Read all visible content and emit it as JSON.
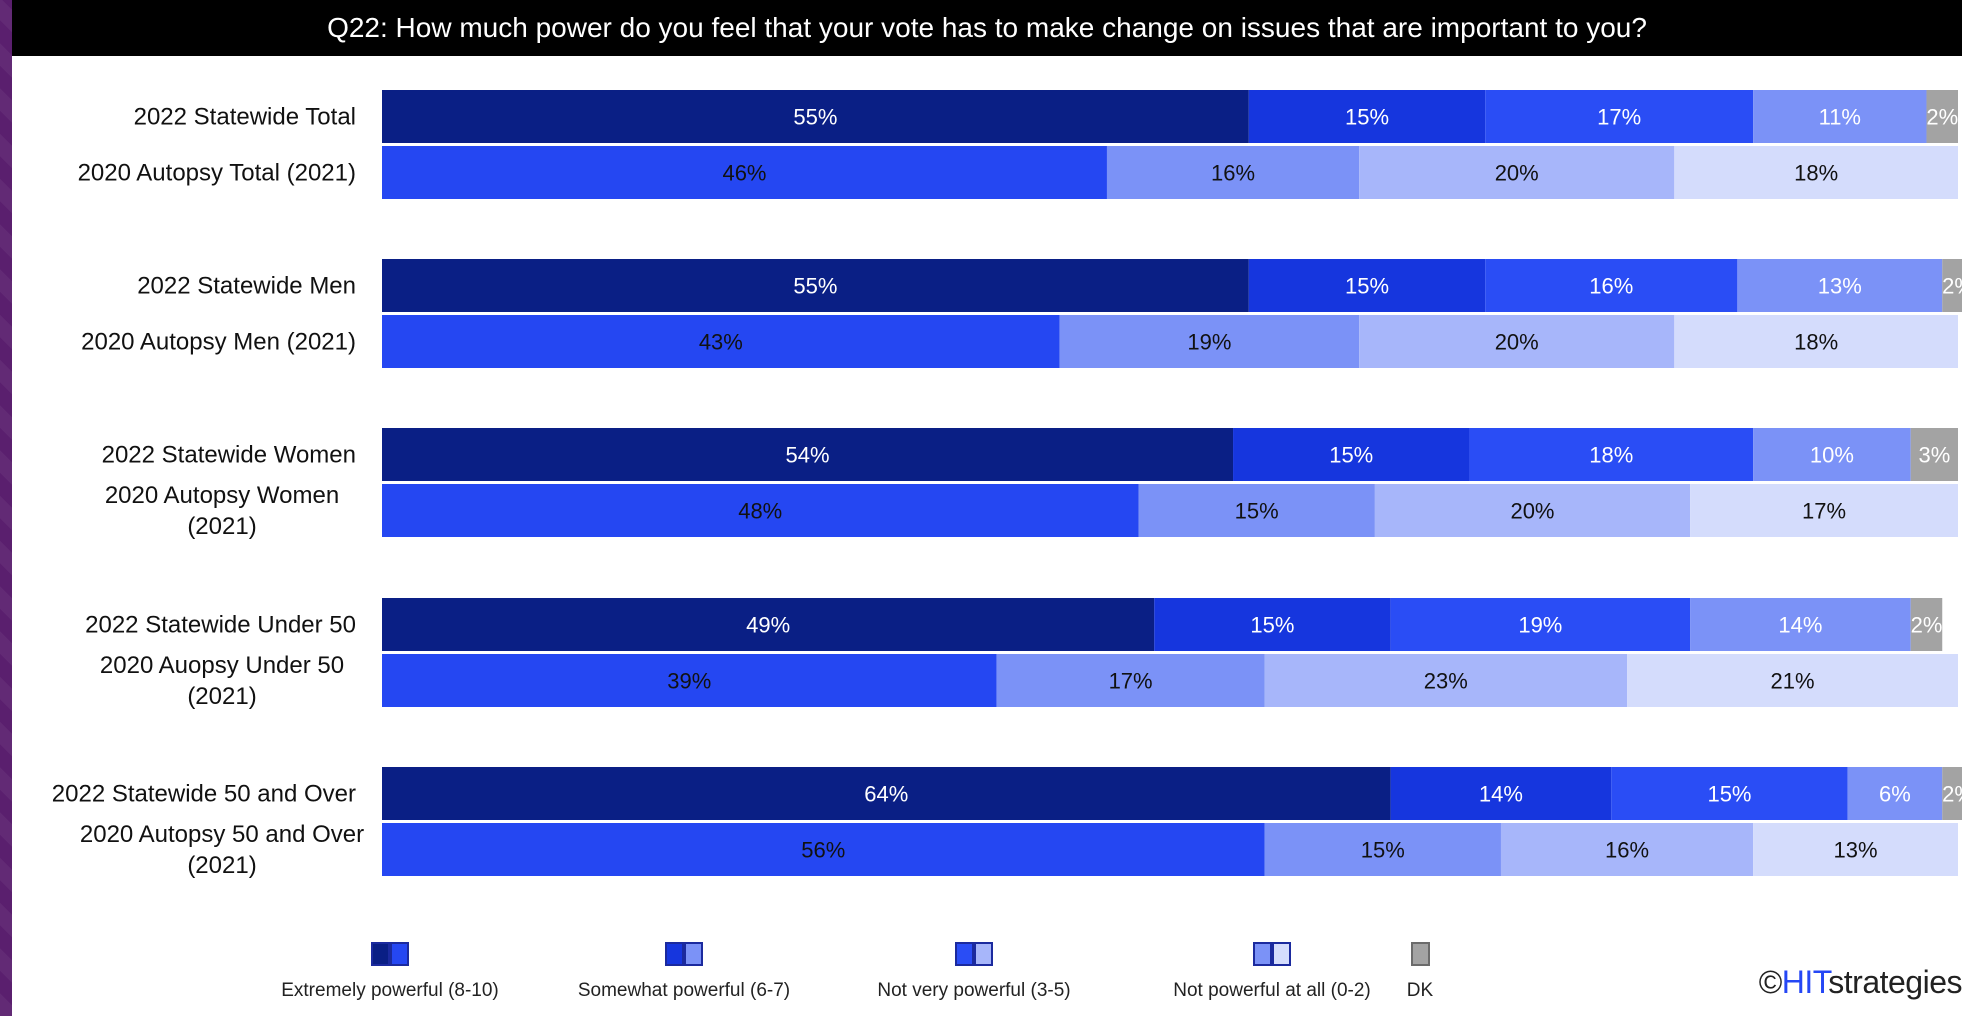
{
  "chart_data": {
    "type": "bar",
    "orientation": "horizontal",
    "stacked": true,
    "title": "Q22: How much power do you feel that your vote has to make change on issues that are important to you?",
    "categories": [
      "2022 Statewide Total",
      "2020 Autopsy Total (2021)",
      "2022 Statewide Men",
      "2020 Autopsy Men (2021)",
      "2022 Statewide Women",
      "2020 Autopsy Women (2021)",
      "2022 Statewide Under 50",
      "2020 Auopsy Under 50 (2021)",
      "2022 Statewide 50 and Over",
      "2020 Autopsy 50 and Over (2021)"
    ],
    "category_lines": [
      [
        "2022 Statewide Total"
      ],
      [
        "2020 Autopsy Total (2021)"
      ],
      [
        "2022 Statewide Men"
      ],
      [
        "2020 Autopsy Men (2021)"
      ],
      [
        "2022 Statewide Women"
      ],
      [
        "2020 Autopsy Women",
        "(2021)"
      ],
      [
        "2022 Statewide Under 50"
      ],
      [
        "2020 Auopsy Under 50",
        "(2021)"
      ],
      [
        "2022 Statewide 50 and Over"
      ],
      [
        "2020 Autopsy 50 and Over",
        "(2021)"
      ]
    ],
    "rows": [
      {
        "segments": [
          55,
          15,
          17,
          11,
          2
        ],
        "colors": [
          "#0a1f85",
          "#1636de",
          "#2a4df5",
          "#7b92f7",
          "#a3a3a3"
        ],
        "label_colors": [
          "#ffffff",
          "#ffffff",
          "#ffffff",
          "#ffffff",
          "#ffffff"
        ]
      },
      {
        "segments": [
          46,
          16,
          20,
          18
        ],
        "colors": [
          "#2547f2",
          "#7b92f7",
          "#a7b6fa",
          "#d4dcfc"
        ],
        "label_colors": [
          "#111111",
          "#111111",
          "#111111",
          "#111111"
        ]
      },
      {
        "segments": [
          55,
          15,
          16,
          13,
          2
        ],
        "colors": [
          "#0a1f85",
          "#1636de",
          "#2a4df5",
          "#7b92f7",
          "#a3a3a3"
        ],
        "label_colors": [
          "#ffffff",
          "#ffffff",
          "#ffffff",
          "#ffffff",
          "#ffffff"
        ]
      },
      {
        "segments": [
          43,
          19,
          20,
          18
        ],
        "colors": [
          "#2547f2",
          "#7b92f7",
          "#a7b6fa",
          "#d4dcfc"
        ],
        "label_colors": [
          "#111111",
          "#111111",
          "#111111",
          "#111111"
        ]
      },
      {
        "segments": [
          54,
          15,
          18,
          10,
          3
        ],
        "colors": [
          "#0a1f85",
          "#1636de",
          "#2a4df5",
          "#7b92f7",
          "#a3a3a3"
        ],
        "label_colors": [
          "#ffffff",
          "#ffffff",
          "#ffffff",
          "#ffffff",
          "#ffffff"
        ]
      },
      {
        "segments": [
          48,
          15,
          20,
          17
        ],
        "colors": [
          "#2547f2",
          "#7b92f7",
          "#a7b6fa",
          "#d4dcfc"
        ],
        "label_colors": [
          "#111111",
          "#111111",
          "#111111",
          "#111111"
        ]
      },
      {
        "segments": [
          49,
          15,
          19,
          14,
          2
        ],
        "colors": [
          "#0a1f85",
          "#1636de",
          "#2a4df5",
          "#7b92f7",
          "#a3a3a3"
        ],
        "label_colors": [
          "#ffffff",
          "#ffffff",
          "#ffffff",
          "#ffffff",
          "#ffffff"
        ]
      },
      {
        "segments": [
          39,
          17,
          23,
          21
        ],
        "colors": [
          "#2547f2",
          "#7b92f7",
          "#a7b6fa",
          "#d4dcfc"
        ],
        "label_colors": [
          "#111111",
          "#111111",
          "#111111",
          "#111111"
        ]
      },
      {
        "segments": [
          64,
          14,
          15,
          6,
          2
        ],
        "colors": [
          "#0a1f85",
          "#1636de",
          "#2a4df5",
          "#7b92f7",
          "#a3a3a3"
        ],
        "label_colors": [
          "#ffffff",
          "#ffffff",
          "#ffffff",
          "#ffffff",
          "#ffffff"
        ]
      },
      {
        "segments": [
          56,
          15,
          16,
          13
        ],
        "colors": [
          "#2547f2",
          "#7b92f7",
          "#a7b6fa",
          "#d4dcfc"
        ],
        "label_colors": [
          "#111111",
          "#111111",
          "#111111",
          "#111111"
        ]
      }
    ],
    "series": [
      {
        "name": "Extremely powerful (8-10)",
        "colors": [
          "#0a1f85",
          "#2547f2"
        ]
      },
      {
        "name": "Somewhat powerful (6-7)",
        "colors": [
          "#1636de",
          "#7b92f7"
        ]
      },
      {
        "name": "Not very powerful (3-5)",
        "colors": [
          "#2a4df5",
          "#a7b6fa"
        ]
      },
      {
        "name": "Not powerful at all (0-2)",
        "colors": [
          "#7b92f7",
          "#d4dcfc"
        ]
      },
      {
        "name": "DK",
        "colors": [
          "#a3a3a3"
        ]
      }
    ],
    "value_suffix": "%",
    "xlim": [
      0,
      100
    ],
    "legend": "bottom",
    "grid": false
  },
  "branding": {
    "logo_mark": "©",
    "logo_hit": "HIT",
    "logo_rest": "strategies"
  }
}
